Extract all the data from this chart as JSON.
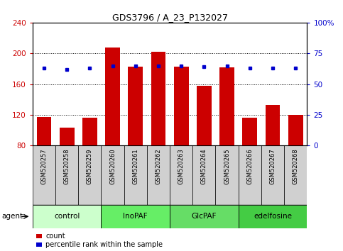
{
  "title": "GDS3796 / A_23_P132027",
  "samples": [
    "GSM520257",
    "GSM520258",
    "GSM520259",
    "GSM520260",
    "GSM520261",
    "GSM520262",
    "GSM520263",
    "GSM520264",
    "GSM520265",
    "GSM520266",
    "GSM520267",
    "GSM520268"
  ],
  "bar_values": [
    117,
    103,
    116,
    208,
    183,
    202,
    183,
    158,
    182,
    116,
    133,
    120
  ],
  "percentile_values": [
    63,
    62,
    63,
    65,
    65,
    65,
    65,
    64,
    65,
    63,
    63,
    63
  ],
  "ylim_left": [
    80,
    240
  ],
  "ylim_right": [
    0,
    100
  ],
  "yticks_left": [
    80,
    120,
    160,
    200,
    240
  ],
  "yticks_right": [
    0,
    25,
    50,
    75,
    100
  ],
  "bar_color": "#cc0000",
  "dot_color": "#0000cc",
  "groups": [
    {
      "label": "control",
      "indices": [
        0,
        1,
        2
      ],
      "color": "#ccffcc"
    },
    {
      "label": "InoPAF",
      "indices": [
        3,
        4,
        5
      ],
      "color": "#66ee66"
    },
    {
      "label": "GlcPAF",
      "indices": [
        6,
        7,
        8
      ],
      "color": "#66dd66"
    },
    {
      "label": "edelfosine",
      "indices": [
        9,
        10,
        11
      ],
      "color": "#44cc44"
    }
  ],
  "agent_label": "agent",
  "bg_color": "#ffffff"
}
